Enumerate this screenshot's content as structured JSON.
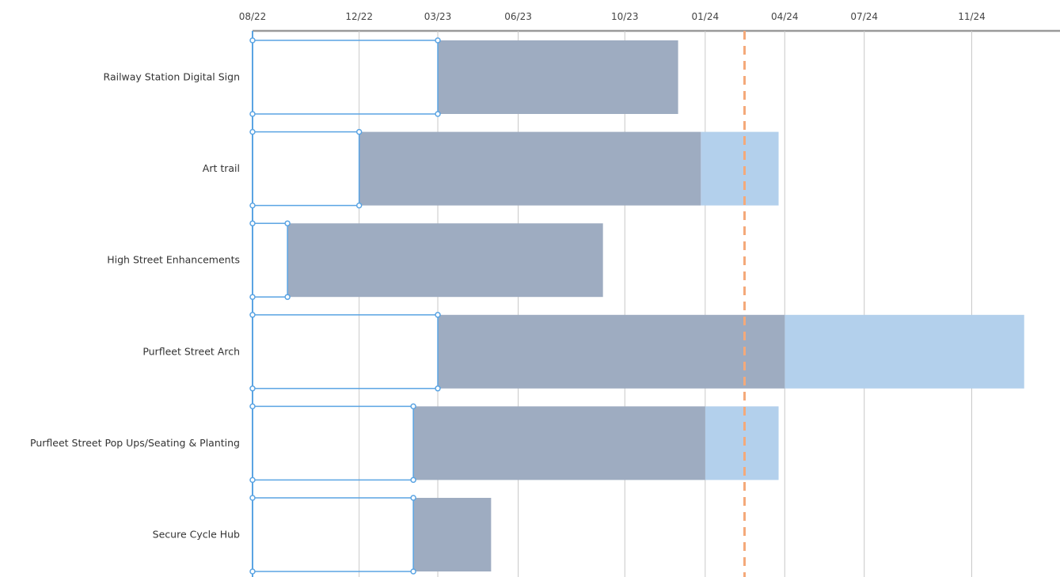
{
  "chart_data": {
    "type": "gantt",
    "title": "",
    "x_axis": {
      "tick_labels": [
        "08/22",
        "12/22",
        "03/23",
        "06/23",
        "10/23",
        "01/24",
        "04/24",
        "07/24",
        "11/24"
      ],
      "tick_dates": [
        "2022-08-01",
        "2022-12-01",
        "2023-03-01",
        "2023-06-01",
        "2023-10-01",
        "2024-01-01",
        "2024-04-01",
        "2024-07-01",
        "2024-11-01"
      ],
      "range": [
        "2022-08-01",
        "2025-02-10"
      ],
      "position": "top",
      "grid": true
    },
    "today_marker": {
      "date": "2024-02-15",
      "style": "dashed",
      "color": "#F4A97A"
    },
    "colors": {
      "planned": "#9EACC1",
      "extension": "#B3D0EC",
      "outline": "#5AA4E3",
      "grid": "#C8C8C8"
    },
    "rows": [
      {
        "name": "Railway Station Digital Sign",
        "outline_start": "2022-08-01",
        "outline_end": "2023-03-01",
        "bar_start": "2023-03-01",
        "bar_end": "2023-12-01",
        "extension_end": null
      },
      {
        "name": "Art trail",
        "outline_start": "2022-08-01",
        "outline_end": "2022-12-01",
        "bar_start": "2022-12-01",
        "bar_end": "2023-12-27",
        "extension_end": "2024-03-25"
      },
      {
        "name": "High Street Enhancements",
        "outline_start": "2022-08-01",
        "outline_end": "2022-09-10",
        "bar_start": "2022-09-10",
        "bar_end": "2023-09-06",
        "extension_end": null
      },
      {
        "name": "Purfleet Street Arch",
        "outline_start": "2022-08-01",
        "outline_end": "2023-03-01",
        "bar_start": "2023-03-01",
        "bar_end": "2024-04-01",
        "extension_end": "2024-12-31"
      },
      {
        "name": "Purfleet Street Pop Ups/Seating & Planting",
        "outline_start": "2022-08-01",
        "outline_end": "2023-02-01",
        "bar_start": "2023-02-01",
        "bar_end": "2024-01-01",
        "extension_end": "2024-03-25"
      },
      {
        "name": "Secure Cycle Hub",
        "outline_start": "2022-08-01",
        "outline_end": "2023-02-01",
        "bar_start": "2023-02-01",
        "bar_end": "2023-05-01",
        "extension_end": null
      }
    ]
  }
}
